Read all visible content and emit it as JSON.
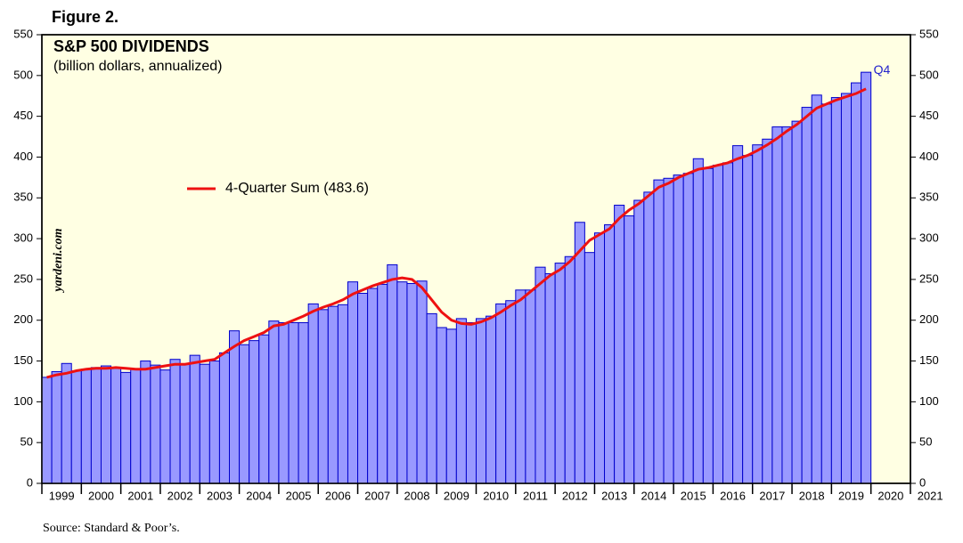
{
  "chart_data": {
    "type": "bar",
    "figure_label": "Figure 2.",
    "title": "S&P 500 DIVIDENDS",
    "subtitle": "(billion dollars, annualized)",
    "watermark": "yardeni.com",
    "source": "Source: Standard & Poor’s.",
    "annotation": "Q4",
    "x": [
      1999,
      1999.25,
      1999.5,
      1999.75,
      2000,
      2000.25,
      2000.5,
      2000.75,
      2001,
      2001.25,
      2001.5,
      2001.75,
      2002,
      2002.25,
      2002.5,
      2002.75,
      2003,
      2003.25,
      2003.5,
      2003.75,
      2004,
      2004.25,
      2004.5,
      2004.75,
      2005,
      2005.25,
      2005.5,
      2005.75,
      2006,
      2006.25,
      2006.5,
      2006.75,
      2007,
      2007.25,
      2007.5,
      2007.75,
      2008,
      2008.25,
      2008.5,
      2008.75,
      2009,
      2009.25,
      2009.5,
      2009.75,
      2010,
      2010.25,
      2010.5,
      2010.75,
      2011,
      2011.25,
      2011.5,
      2011.75,
      2012,
      2012.25,
      2012.5,
      2012.75,
      2013,
      2013.25,
      2013.5,
      2013.75,
      2014,
      2014.25,
      2014.5,
      2014.75,
      2015,
      2015.25,
      2015.5,
      2015.75,
      2016,
      2016.25,
      2016.5,
      2016.75,
      2017,
      2017.25,
      2017.5,
      2017.75,
      2018,
      2018.25,
      2018.5,
      2018.75,
      2019,
      2019.25,
      2019.5,
      2019.75
    ],
    "series": [
      {
        "name": "Dividends",
        "type": "bar",
        "color": "#9999ff",
        "edge": "#0000cc",
        "values": [
          130,
          137,
          147,
          138,
          140,
          142,
          144,
          142,
          136,
          140,
          150,
          145,
          139,
          152,
          146,
          157,
          146,
          150,
          160,
          187,
          170,
          175,
          182,
          199,
          197,
          197,
          197,
          220,
          213,
          217,
          219,
          247,
          233,
          239,
          244,
          268,
          247,
          245,
          248,
          208,
          191,
          189,
          202,
          197,
          202,
          205,
          220,
          224,
          237,
          237,
          265,
          257,
          270,
          278,
          320,
          283,
          307,
          317,
          341,
          328,
          347,
          357,
          372,
          374,
          378,
          380,
          398,
          386,
          390,
          393,
          414,
          402,
          415,
          422,
          437,
          437,
          444,
          461,
          476,
          465,
          473,
          478,
          491,
          504
        ]
      },
      {
        "name": "4-Quarter Sum (483.6)",
        "type": "line",
        "color": "#ee1111",
        "values": [
          130,
          133,
          135,
          138,
          140,
          141,
          141,
          142,
          141,
          140,
          140,
          142,
          144,
          146,
          146,
          148,
          150,
          152,
          160,
          168,
          175,
          180,
          185,
          193,
          195,
          200,
          205,
          211,
          216,
          220,
          225,
          232,
          237,
          242,
          246,
          250,
          252,
          250,
          240,
          225,
          210,
          200,
          196,
          195,
          198,
          203,
          210,
          218,
          225,
          235,
          245,
          255,
          262,
          272,
          285,
          298,
          305,
          312,
          325,
          335,
          343,
          353,
          363,
          368,
          375,
          380,
          385,
          387,
          390,
          393,
          398,
          402,
          408,
          415,
          423,
          432,
          440,
          450,
          460,
          465,
          470,
          474,
          478,
          483.6
        ]
      }
    ],
    "xlim": [
      1999,
      2021
    ],
    "xticks": [
      1999,
      2000,
      2001,
      2002,
      2003,
      2004,
      2005,
      2006,
      2007,
      2008,
      2009,
      2010,
      2011,
      2012,
      2013,
      2014,
      2015,
      2016,
      2017,
      2018,
      2019,
      2020,
      2021
    ],
    "ylim": [
      0,
      550
    ],
    "yticks": [
      0,
      50,
      100,
      150,
      200,
      250,
      300,
      350,
      400,
      450,
      500,
      550
    ],
    "y2lim": [
      0,
      550
    ],
    "y2ticks": [
      0,
      50,
      100,
      150,
      200,
      250,
      300,
      350,
      400,
      450,
      500,
      550
    ],
    "background": "#ffffe3"
  }
}
